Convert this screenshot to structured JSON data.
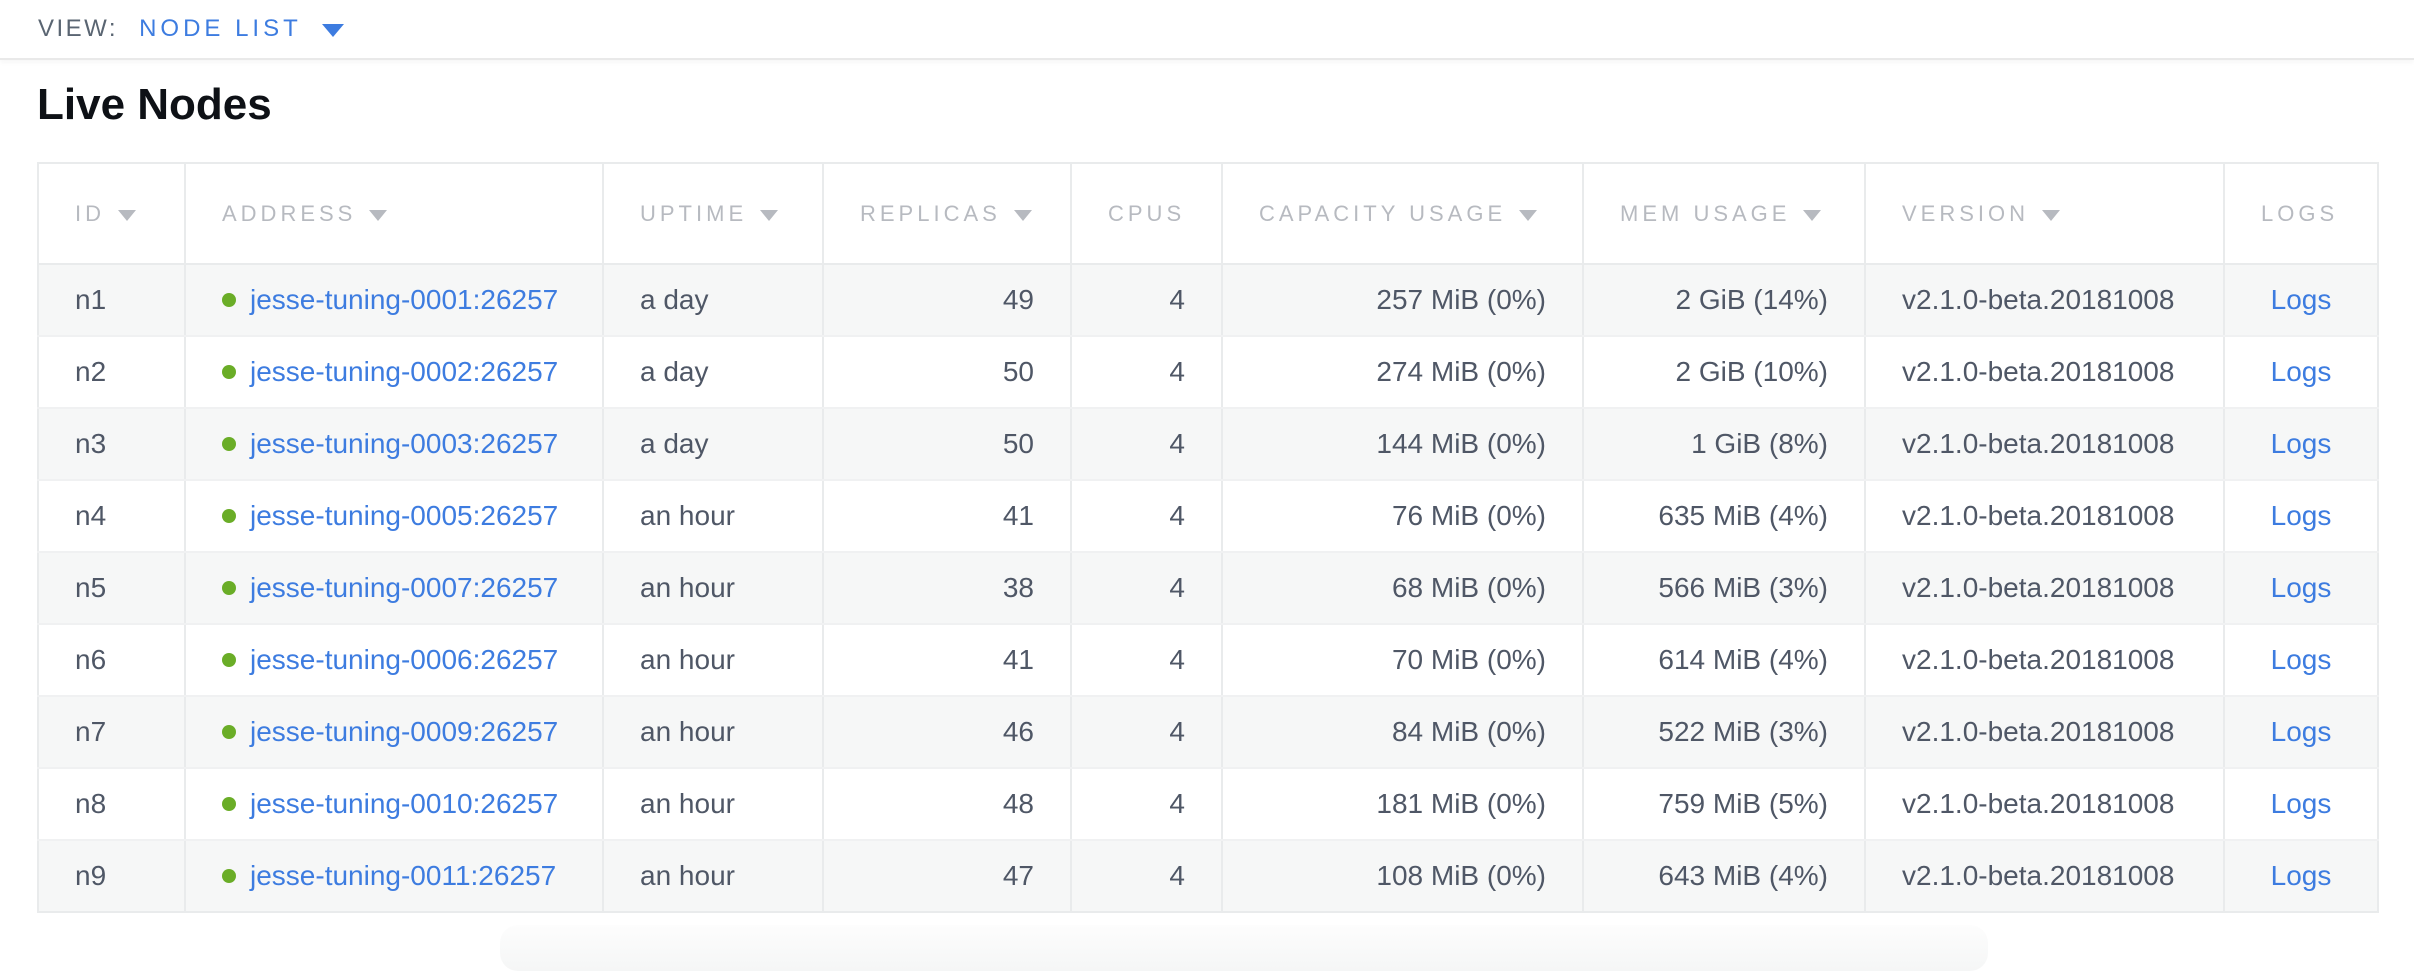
{
  "view_bar": {
    "label": "VIEW:",
    "selected_view": "NODE LIST"
  },
  "page": {
    "heading": "Live Nodes"
  },
  "table": {
    "columns": [
      {
        "key": "id",
        "label": "ID",
        "sortable": true,
        "align": "left"
      },
      {
        "key": "address",
        "label": "ADDRESS",
        "sortable": true,
        "align": "left"
      },
      {
        "key": "uptime",
        "label": "UPTIME",
        "sortable": true,
        "align": "left"
      },
      {
        "key": "replicas",
        "label": "REPLICAS",
        "sortable": true,
        "align": "right"
      },
      {
        "key": "cpus",
        "label": "CPUS",
        "sortable": false,
        "align": "right"
      },
      {
        "key": "capacity_usage",
        "label": "CAPACITY USAGE",
        "sortable": true,
        "align": "right"
      },
      {
        "key": "mem_usage",
        "label": "MEM USAGE",
        "sortable": true,
        "align": "right"
      },
      {
        "key": "version",
        "label": "VERSION",
        "sortable": true,
        "align": "left"
      },
      {
        "key": "logs",
        "label": "LOGS",
        "sortable": false,
        "align": "center"
      }
    ],
    "rows": [
      {
        "id": "n1",
        "status": "healthy",
        "address": "jesse-tuning-0001:26257",
        "uptime": "a day",
        "replicas": "49",
        "cpus": "4",
        "capacity_usage": "257 MiB (0%)",
        "mem_usage": "2 GiB (14%)",
        "version": "v2.1.0-beta.20181008",
        "logs": "Logs"
      },
      {
        "id": "n2",
        "status": "healthy",
        "address": "jesse-tuning-0002:26257",
        "uptime": "a day",
        "replicas": "50",
        "cpus": "4",
        "capacity_usage": "274 MiB (0%)",
        "mem_usage": "2 GiB (10%)",
        "version": "v2.1.0-beta.20181008",
        "logs": "Logs"
      },
      {
        "id": "n3",
        "status": "healthy",
        "address": "jesse-tuning-0003:26257",
        "uptime": "a day",
        "replicas": "50",
        "cpus": "4",
        "capacity_usage": "144 MiB (0%)",
        "mem_usage": "1 GiB (8%)",
        "version": "v2.1.0-beta.20181008",
        "logs": "Logs"
      },
      {
        "id": "n4",
        "status": "healthy",
        "address": "jesse-tuning-0005:26257",
        "uptime": "an hour",
        "replicas": "41",
        "cpus": "4",
        "capacity_usage": "76 MiB (0%)",
        "mem_usage": "635 MiB (4%)",
        "version": "v2.1.0-beta.20181008",
        "logs": "Logs"
      },
      {
        "id": "n5",
        "status": "healthy",
        "address": "jesse-tuning-0007:26257",
        "uptime": "an hour",
        "replicas": "38",
        "cpus": "4",
        "capacity_usage": "68 MiB (0%)",
        "mem_usage": "566 MiB (3%)",
        "version": "v2.1.0-beta.20181008",
        "logs": "Logs"
      },
      {
        "id": "n6",
        "status": "healthy",
        "address": "jesse-tuning-0006:26257",
        "uptime": "an hour",
        "replicas": "41",
        "cpus": "4",
        "capacity_usage": "70 MiB (0%)",
        "mem_usage": "614 MiB (4%)",
        "version": "v2.1.0-beta.20181008",
        "logs": "Logs"
      },
      {
        "id": "n7",
        "status": "healthy",
        "address": "jesse-tuning-0009:26257",
        "uptime": "an hour",
        "replicas": "46",
        "cpus": "4",
        "capacity_usage": "84 MiB (0%)",
        "mem_usage": "522 MiB (3%)",
        "version": "v2.1.0-beta.20181008",
        "logs": "Logs"
      },
      {
        "id": "n8",
        "status": "healthy",
        "address": "jesse-tuning-0010:26257",
        "uptime": "an hour",
        "replicas": "48",
        "cpus": "4",
        "capacity_usage": "181 MiB (0%)",
        "mem_usage": "759 MiB (5%)",
        "version": "v2.1.0-beta.20181008",
        "logs": "Logs"
      },
      {
        "id": "n9",
        "status": "healthy",
        "address": "jesse-tuning-0011:26257",
        "uptime": "an hour",
        "replicas": "47",
        "cpus": "4",
        "capacity_usage": "108 MiB (0%)",
        "mem_usage": "643 MiB (4%)",
        "version": "v2.1.0-beta.20181008",
        "logs": "Logs"
      }
    ]
  },
  "colors": {
    "link_blue": "#3d7ce0",
    "healthy_green": "#6aad27",
    "header_gray": "#b7bac0",
    "body_text": "#4f5766",
    "row_alt_bg": "#f6f7f7",
    "border": "#e9ebec"
  }
}
